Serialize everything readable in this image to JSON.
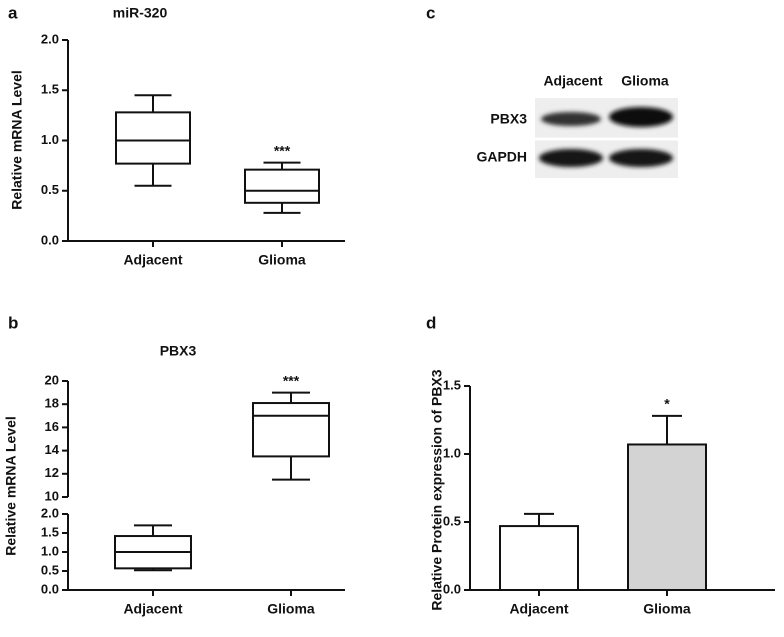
{
  "chart_data": [
    {
      "type": "box",
      "panel": "a",
      "title": "miR-320",
      "ylabel": "Relative mRNA Level",
      "categories": [
        "Adjacent",
        "Glioma"
      ],
      "boxes": [
        {
          "whislo": 0.55,
          "q1": 0.77,
          "med": 1.0,
          "q3": 1.28,
          "whishi": 1.45
        },
        {
          "whislo": 0.28,
          "q1": 0.38,
          "med": 0.5,
          "q3": 0.71,
          "whishi": 0.78
        }
      ],
      "annotations": [
        null,
        "***"
      ],
      "ylim": [
        0,
        2
      ],
      "yticks": [
        {
          "value": 0,
          "label": "0.0"
        },
        0.5,
        {
          "value": 1,
          "label": "1.0"
        },
        1.5,
        {
          "value": 2,
          "label": "2.0"
        }
      ]
    },
    {
      "type": "box",
      "panel": "b",
      "title": "PBX3",
      "ylabel": "Relative mRNA Level",
      "categories": [
        "Adjacent",
        "Glioma"
      ],
      "boxes": [
        {
          "whislo": 0.52,
          "q1": 0.57,
          "med": 1.0,
          "q3": 1.42,
          "whishi": 1.7
        },
        {
          "whislo": 11.5,
          "q1": 13.5,
          "med": 17,
          "q3": 18.1,
          "whishi": 19
        }
      ],
      "annotations": [
        null,
        "***"
      ],
      "ylim": [
        0,
        20
      ],
      "ybreak": [
        2,
        10
      ],
      "yticks": [
        {
          "value": 0,
          "label": "0.0"
        },
        0.5,
        {
          "value": 1,
          "label": "1.0"
        },
        1.5,
        {
          "value": 2,
          "label": "2.0"
        },
        10,
        12,
        14,
        16,
        18,
        20
      ]
    },
    {
      "type": "bar",
      "panel": "d",
      "ylabel": "Relative Protein expression  of  PBX3",
      "categories": [
        "Adjacent",
        "Glioma"
      ],
      "values": [
        0.47,
        1.07
      ],
      "errors": [
        0.09,
        0.21
      ],
      "colors": [
        "#ffffff",
        "#d3d3d3"
      ],
      "annotations": [
        null,
        "*"
      ],
      "ylim": [
        0,
        1.5
      ],
      "yticks": [
        {
          "value": 0,
          "label": "0.0"
        },
        0.5,
        {
          "value": 1,
          "label": "1.0"
        },
        1.5
      ]
    }
  ],
  "blot": {
    "panel": "c",
    "columns": [
      "Adjacent",
      "Glioma"
    ],
    "rows": [
      "PBX3",
      "GAPDH"
    ]
  }
}
